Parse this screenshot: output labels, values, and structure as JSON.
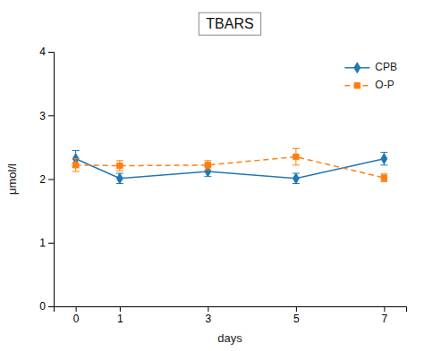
{
  "chart_data": {
    "type": "line",
    "title": "TBARS",
    "xlabel": "days",
    "ylabel": "μmol/l",
    "x": [
      0,
      1,
      3,
      5,
      7
    ],
    "series": [
      {
        "name": "CPB",
        "values": [
          2.32,
          2.01,
          2.12,
          2.01,
          2.32
        ],
        "errors": [
          0.13,
          0.08,
          0.08,
          0.08,
          0.1
        ],
        "marker": "diamond",
        "line_style": "solid"
      },
      {
        "name": "O-P",
        "values": [
          2.22,
          2.21,
          2.22,
          2.35,
          2.02
        ],
        "errors": [
          0.1,
          0.08,
          0.07,
          0.13,
          0.06
        ],
        "marker": "square",
        "line_style": "dashed"
      }
    ],
    "xlim": [
      -0.5,
      7.5
    ],
    "xticks": [
      0,
      1,
      3,
      5,
      7
    ],
    "ylim": [
      0,
      4
    ],
    "yticks": [
      0,
      1,
      2,
      3,
      4
    ],
    "grid": false,
    "legend": "upper right"
  }
}
